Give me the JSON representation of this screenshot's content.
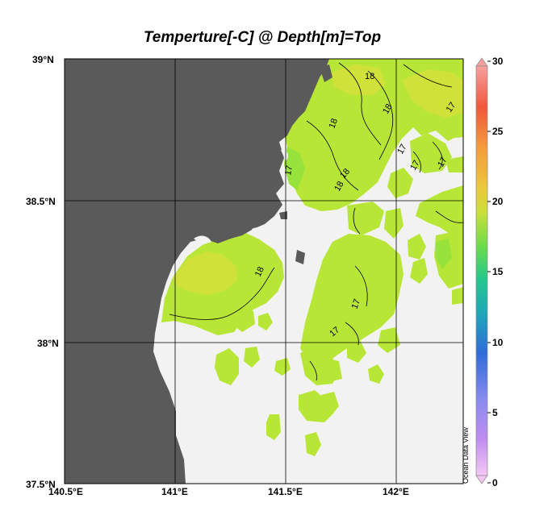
{
  "title": "Temperture[-C] @ Depth[m]=Top",
  "y_axis": {
    "ticks": [
      {
        "label": "39°N",
        "value": 39.0
      },
      {
        "label": "38.5°N",
        "value": 38.5
      },
      {
        "label": "38°N",
        "value": 38.0
      },
      {
        "label": "37.5°N",
        "value": 37.5
      }
    ]
  },
  "x_axis": {
    "ticks": [
      {
        "label": "140.5°E",
        "value": 140.5
      },
      {
        "label": "141°E",
        "value": 141.0
      },
      {
        "label": "141.5°E",
        "value": 141.5
      },
      {
        "label": "142°E",
        "value": 142.0
      }
    ]
  },
  "colorbar": {
    "ticks": [
      "30",
      "25",
      "20",
      "15",
      "10",
      "5",
      "0"
    ],
    "range": [
      0,
      30
    ],
    "colors": [
      "#f4c8f4",
      "#c08cf0",
      "#8c8cf0",
      "#2f6cd8",
      "#1ea8b8",
      "#24c88c",
      "#6cdc4c",
      "#c8e03c",
      "#ecc83c",
      "#f49c3c",
      "#f0583c",
      "#f8a0a0"
    ]
  },
  "contour_labels": [
    "18",
    "18",
    "18",
    "17",
    "17",
    "18",
    "18",
    "18",
    "17",
    "17",
    "17",
    "17",
    "17"
  ],
  "credit": "Ocean Data View",
  "colors": {
    "land": "#5a5a5a",
    "nodata": "#f2f2f2",
    "field_main": "#b8e636",
    "field_warm": "#d0e23a",
    "field_cool": "#98e23c"
  }
}
